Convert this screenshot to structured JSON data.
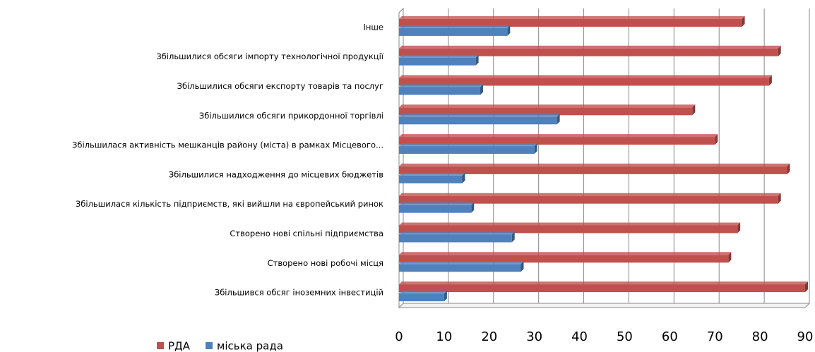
{
  "chart_data": {
    "type": "bar",
    "orientation": "horizontal",
    "categories": [
      "Інше",
      "Збільшилися обсяги імпорту технологічної продукції",
      "Збільшилися обсяги експорту товарів та послуг",
      "Збільшилися обсяги прикордонної торгівлі",
      "Збільшилася активність мешканців району (міста) в рамках Місцевого...",
      "Збільшилися надходження до місцевих бюджетів",
      "Збільшилася кількість підприємств, які вийшли на європейський ринок",
      "Створено нові спільні підприємства",
      "Створено нові робочі місця",
      "Збільшився обсяг іноземних інвестицій"
    ],
    "series": [
      {
        "name": "РДА",
        "color": "#c0504d",
        "values": [
          76,
          84,
          82,
          65,
          70,
          86,
          84,
          75,
          73,
          90
        ]
      },
      {
        "name": "міська рада",
        "color": "#4f81bd",
        "values": [
          24,
          17,
          18,
          35,
          30,
          14,
          16,
          25,
          27,
          10
        ]
      }
    ],
    "xlim": [
      0,
      90
    ],
    "xticks": [
      0,
      10,
      20,
      30,
      40,
      50,
      60,
      70,
      80,
      90
    ],
    "grid": true,
    "legend": "bottom-left"
  }
}
